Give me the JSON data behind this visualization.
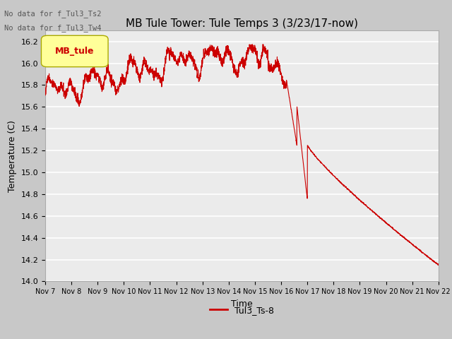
{
  "title": "MB Tule Tower: Tule Temps 3 (3/23/17-now)",
  "xlabel": "Time",
  "ylabel": "Temperature (C)",
  "ylim": [
    14.0,
    16.3
  ],
  "yticks": [
    14.0,
    14.2,
    14.4,
    14.6,
    14.8,
    15.0,
    15.2,
    15.4,
    15.6,
    15.8,
    16.0,
    16.2
  ],
  "xtick_labels": [
    "Nov 7",
    "Nov 8",
    "Nov 9",
    "Nov 10",
    "Nov 11",
    "Nov 12",
    "Nov 13",
    "Nov 14",
    "Nov 15",
    "Nov 16",
    "Nov 17",
    "Nov 18",
    "Nov 19",
    "Nov 20",
    "Nov 21",
    "Nov 22"
  ],
  "line_color": "#cc0000",
  "line_label": "Tul3_Ts-8",
  "legend_box_color": "#ffff99",
  "legend_box_edge": "#aaaa00",
  "legend_box_text": "MB_tule",
  "legend_box_text_color": "#cc0000",
  "no_data_texts": [
    "No data for f_Tul3_Ts2",
    "No data for f_Tul3_Tw4"
  ],
  "plot_bg": "#ebebeb",
  "grid_color": "#ffffff",
  "fig_bg": "#c8c8c8",
  "title_fontsize": 11,
  "axis_fontsize": 9,
  "tick_fontsize": 8
}
